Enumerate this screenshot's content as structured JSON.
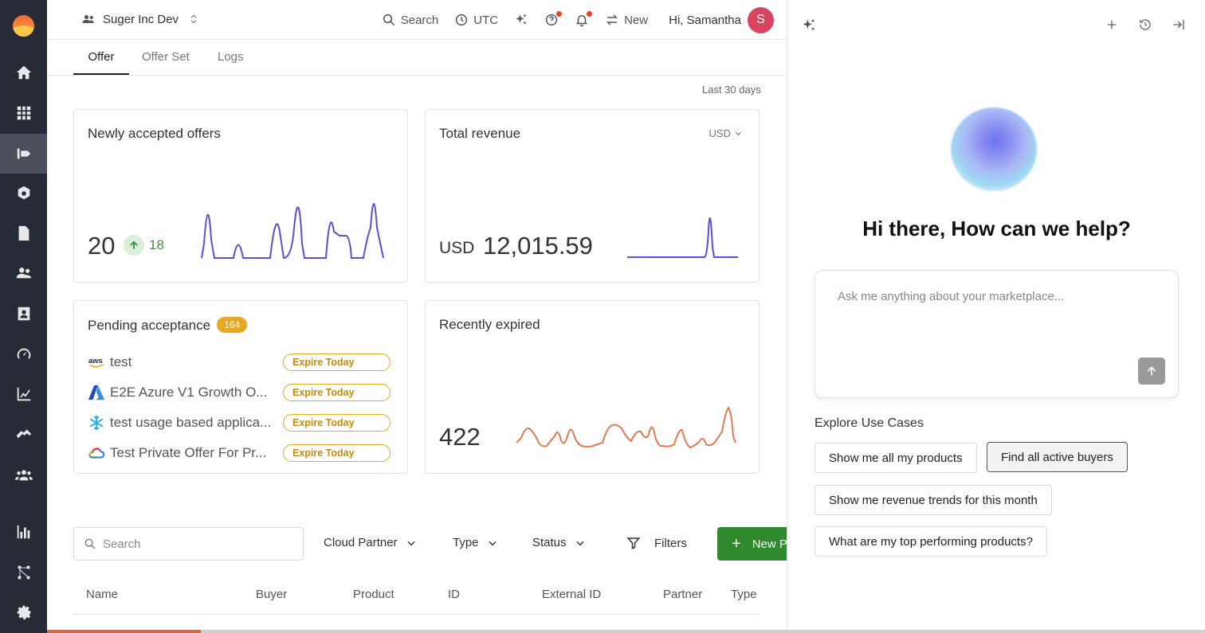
{
  "app": {
    "title": "Suger Inc Dev"
  },
  "header": {
    "org_name": "Suger Inc Dev",
    "search_label": "Search",
    "timezone_label": "UTC",
    "new_label": "New",
    "greeting": "Hi, Samantha",
    "avatar_initial": "S"
  },
  "rail": {
    "items": [
      "home-icon",
      "grid-icon",
      "offer-icon",
      "gear-alt-icon",
      "document-icon",
      "users-icon",
      "contacts-icon",
      "gauge-icon",
      "chart-icon",
      "handshake-icon",
      "team-icon",
      "bar-chart-icon",
      "workflow-icon",
      "settings-icon"
    ],
    "active_index": 2
  },
  "tabs": [
    {
      "label": "Offer",
      "active": true
    },
    {
      "label": "Offer Set",
      "active": false
    },
    {
      "label": "Logs",
      "active": false
    }
  ],
  "range_label": "Last 30 days",
  "cards": {
    "accepted": {
      "title": "Newly accepted offers",
      "value": "20",
      "delta": "18"
    },
    "revenue": {
      "title": "Total revenue",
      "currency_select": "USD",
      "currency": "USD",
      "value": "12,015.59"
    },
    "pending": {
      "title": "Pending acceptance",
      "count": "164",
      "rows": [
        {
          "partner": "aws",
          "name": "test",
          "status": "Expire Today"
        },
        {
          "partner": "azure",
          "name": "E2E Azure V1 Growth O...",
          "status": "Expire Today"
        },
        {
          "partner": "snowflake",
          "name": "test usage based applica...",
          "status": "Expire Today"
        },
        {
          "partner": "gcp",
          "name": "Test Private Offer For Pr...",
          "status": "Expire Today"
        }
      ]
    },
    "expired": {
      "title": "Recently expired",
      "value": "422"
    }
  },
  "filters": {
    "search_placeholder": "Search",
    "cloud_partner": "Cloud Partner",
    "type": "Type",
    "status": "Status",
    "filters": "Filters",
    "new_button": "New P"
  },
  "table": {
    "columns": [
      "Name",
      "Buyer",
      "Product",
      "ID",
      "External ID",
      "Partner",
      "Type"
    ]
  },
  "assistant": {
    "greeting": "Hi there, How can we help?",
    "input_placeholder": "Ask me anything about your marketplace...",
    "explore_title": "Explore Use Cases",
    "use_cases": [
      "Show me all my products",
      "Find all active buyers",
      "Show me revenue trends for this month",
      "What are my top performing products?"
    ],
    "selected_use_case": 1
  },
  "colors": {
    "accent_green": "#2f8a2d",
    "warning": "#e6a823",
    "line_purple": "#5b4fd6",
    "line_orange": "#e07a55"
  }
}
